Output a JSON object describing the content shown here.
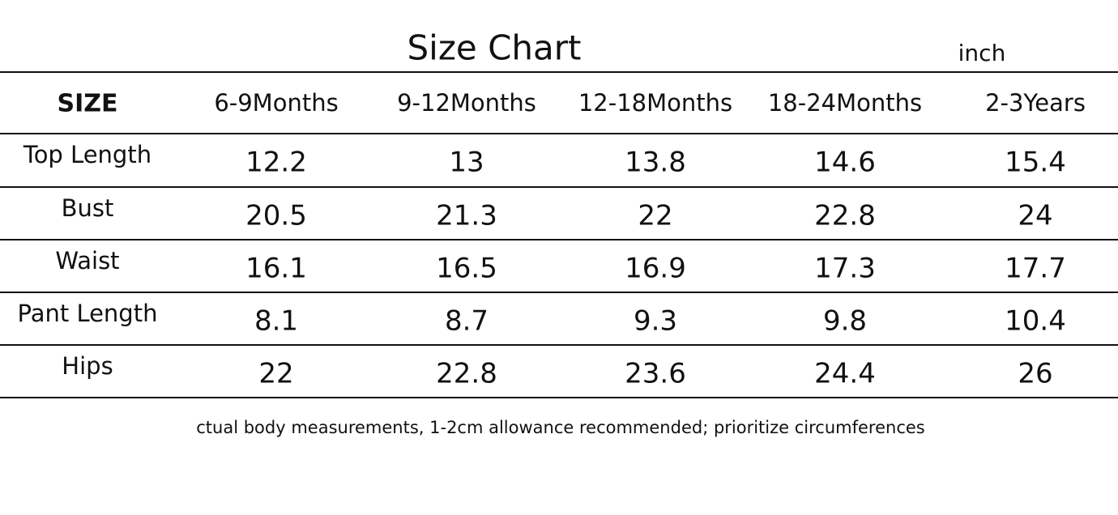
{
  "title": "Size Chart",
  "unit": "inch",
  "table": {
    "header": [
      "SIZE",
      "6-9Months",
      "9-12Months",
      "12-18Months",
      "18-24Months",
      "2-3Years"
    ],
    "rows": [
      [
        "Top Length",
        12.2,
        13,
        13.8,
        14.6,
        15.4
      ],
      [
        "Bust",
        20.5,
        21.3,
        22,
        22.8,
        24
      ],
      [
        "Waist",
        16.1,
        16.5,
        16.9,
        17.3,
        17.7
      ],
      [
        "Pant Length",
        8.1,
        8.7,
        9.3,
        9.8,
        10.4
      ],
      [
        "Hips",
        22,
        22.8,
        23.6,
        24.4,
        26
      ]
    ]
  },
  "footnote": "ctual body measurements, 1-2cm allowance recommended; prioritize circumferences"
}
